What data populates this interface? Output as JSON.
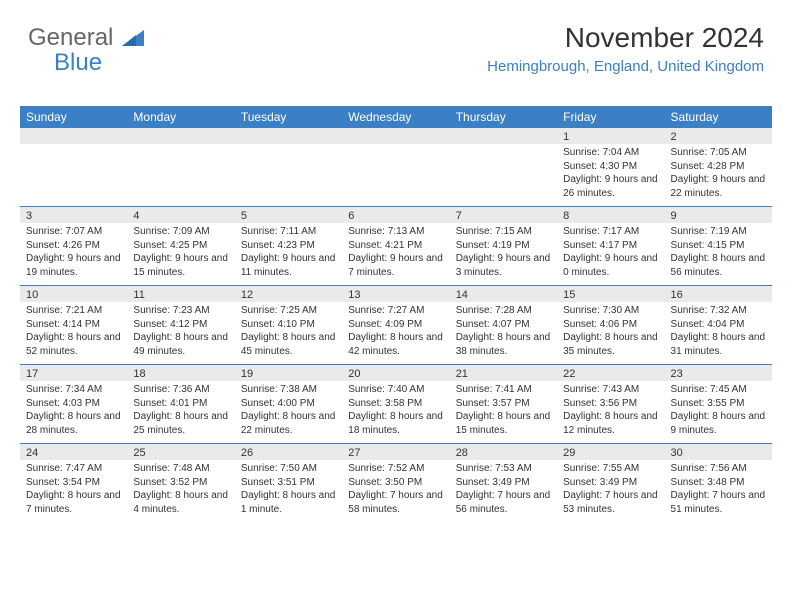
{
  "logo": {
    "line1": "General",
    "line2": "Blue"
  },
  "header": {
    "month_title": "November 2024",
    "location": "Hemingbrough, England, United Kingdom"
  },
  "colors": {
    "header_bg": "#3b7fc4",
    "date_row_bg": "#e9eaeb",
    "week_border": "#3b7fc4",
    "location_color": "#3b7fc4"
  },
  "day_names": [
    "Sunday",
    "Monday",
    "Tuesday",
    "Wednesday",
    "Thursday",
    "Friday",
    "Saturday"
  ],
  "weeks": [
    [
      {
        "date": "",
        "sunrise": "",
        "sunset": "",
        "daylight": ""
      },
      {
        "date": "",
        "sunrise": "",
        "sunset": "",
        "daylight": ""
      },
      {
        "date": "",
        "sunrise": "",
        "sunset": "",
        "daylight": ""
      },
      {
        "date": "",
        "sunrise": "",
        "sunset": "",
        "daylight": ""
      },
      {
        "date": "",
        "sunrise": "",
        "sunset": "",
        "daylight": ""
      },
      {
        "date": "1",
        "sunrise": "Sunrise: 7:04 AM",
        "sunset": "Sunset: 4:30 PM",
        "daylight": "Daylight: 9 hours and 26 minutes."
      },
      {
        "date": "2",
        "sunrise": "Sunrise: 7:05 AM",
        "sunset": "Sunset: 4:28 PM",
        "daylight": "Daylight: 9 hours and 22 minutes."
      }
    ],
    [
      {
        "date": "3",
        "sunrise": "Sunrise: 7:07 AM",
        "sunset": "Sunset: 4:26 PM",
        "daylight": "Daylight: 9 hours and 19 minutes."
      },
      {
        "date": "4",
        "sunrise": "Sunrise: 7:09 AM",
        "sunset": "Sunset: 4:25 PM",
        "daylight": "Daylight: 9 hours and 15 minutes."
      },
      {
        "date": "5",
        "sunrise": "Sunrise: 7:11 AM",
        "sunset": "Sunset: 4:23 PM",
        "daylight": "Daylight: 9 hours and 11 minutes."
      },
      {
        "date": "6",
        "sunrise": "Sunrise: 7:13 AM",
        "sunset": "Sunset: 4:21 PM",
        "daylight": "Daylight: 9 hours and 7 minutes."
      },
      {
        "date": "7",
        "sunrise": "Sunrise: 7:15 AM",
        "sunset": "Sunset: 4:19 PM",
        "daylight": "Daylight: 9 hours and 3 minutes."
      },
      {
        "date": "8",
        "sunrise": "Sunrise: 7:17 AM",
        "sunset": "Sunset: 4:17 PM",
        "daylight": "Daylight: 9 hours and 0 minutes."
      },
      {
        "date": "9",
        "sunrise": "Sunrise: 7:19 AM",
        "sunset": "Sunset: 4:15 PM",
        "daylight": "Daylight: 8 hours and 56 minutes."
      }
    ],
    [
      {
        "date": "10",
        "sunrise": "Sunrise: 7:21 AM",
        "sunset": "Sunset: 4:14 PM",
        "daylight": "Daylight: 8 hours and 52 minutes."
      },
      {
        "date": "11",
        "sunrise": "Sunrise: 7:23 AM",
        "sunset": "Sunset: 4:12 PM",
        "daylight": "Daylight: 8 hours and 49 minutes."
      },
      {
        "date": "12",
        "sunrise": "Sunrise: 7:25 AM",
        "sunset": "Sunset: 4:10 PM",
        "daylight": "Daylight: 8 hours and 45 minutes."
      },
      {
        "date": "13",
        "sunrise": "Sunrise: 7:27 AM",
        "sunset": "Sunset: 4:09 PM",
        "daylight": "Daylight: 8 hours and 42 minutes."
      },
      {
        "date": "14",
        "sunrise": "Sunrise: 7:28 AM",
        "sunset": "Sunset: 4:07 PM",
        "daylight": "Daylight: 8 hours and 38 minutes."
      },
      {
        "date": "15",
        "sunrise": "Sunrise: 7:30 AM",
        "sunset": "Sunset: 4:06 PM",
        "daylight": "Daylight: 8 hours and 35 minutes."
      },
      {
        "date": "16",
        "sunrise": "Sunrise: 7:32 AM",
        "sunset": "Sunset: 4:04 PM",
        "daylight": "Daylight: 8 hours and 31 minutes."
      }
    ],
    [
      {
        "date": "17",
        "sunrise": "Sunrise: 7:34 AM",
        "sunset": "Sunset: 4:03 PM",
        "daylight": "Daylight: 8 hours and 28 minutes."
      },
      {
        "date": "18",
        "sunrise": "Sunrise: 7:36 AM",
        "sunset": "Sunset: 4:01 PM",
        "daylight": "Daylight: 8 hours and 25 minutes."
      },
      {
        "date": "19",
        "sunrise": "Sunrise: 7:38 AM",
        "sunset": "Sunset: 4:00 PM",
        "daylight": "Daylight: 8 hours and 22 minutes."
      },
      {
        "date": "20",
        "sunrise": "Sunrise: 7:40 AM",
        "sunset": "Sunset: 3:58 PM",
        "daylight": "Daylight: 8 hours and 18 minutes."
      },
      {
        "date": "21",
        "sunrise": "Sunrise: 7:41 AM",
        "sunset": "Sunset: 3:57 PM",
        "daylight": "Daylight: 8 hours and 15 minutes."
      },
      {
        "date": "22",
        "sunrise": "Sunrise: 7:43 AM",
        "sunset": "Sunset: 3:56 PM",
        "daylight": "Daylight: 8 hours and 12 minutes."
      },
      {
        "date": "23",
        "sunrise": "Sunrise: 7:45 AM",
        "sunset": "Sunset: 3:55 PM",
        "daylight": "Daylight: 8 hours and 9 minutes."
      }
    ],
    [
      {
        "date": "24",
        "sunrise": "Sunrise: 7:47 AM",
        "sunset": "Sunset: 3:54 PM",
        "daylight": "Daylight: 8 hours and 7 minutes."
      },
      {
        "date": "25",
        "sunrise": "Sunrise: 7:48 AM",
        "sunset": "Sunset: 3:52 PM",
        "daylight": "Daylight: 8 hours and 4 minutes."
      },
      {
        "date": "26",
        "sunrise": "Sunrise: 7:50 AM",
        "sunset": "Sunset: 3:51 PM",
        "daylight": "Daylight: 8 hours and 1 minute."
      },
      {
        "date": "27",
        "sunrise": "Sunrise: 7:52 AM",
        "sunset": "Sunset: 3:50 PM",
        "daylight": "Daylight: 7 hours and 58 minutes."
      },
      {
        "date": "28",
        "sunrise": "Sunrise: 7:53 AM",
        "sunset": "Sunset: 3:49 PM",
        "daylight": "Daylight: 7 hours and 56 minutes."
      },
      {
        "date": "29",
        "sunrise": "Sunrise: 7:55 AM",
        "sunset": "Sunset: 3:49 PM",
        "daylight": "Daylight: 7 hours and 53 minutes."
      },
      {
        "date": "30",
        "sunrise": "Sunrise: 7:56 AM",
        "sunset": "Sunset: 3:48 PM",
        "daylight": "Daylight: 7 hours and 51 minutes."
      }
    ]
  ]
}
